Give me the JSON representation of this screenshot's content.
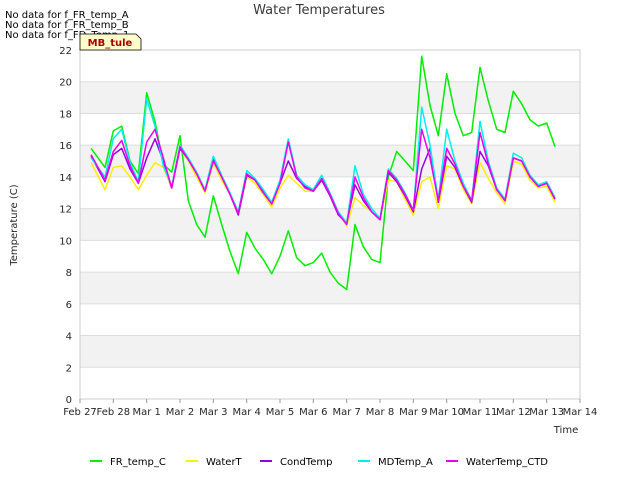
{
  "chart_data": {
    "type": "line",
    "title": "Water Temperatures",
    "xlabel": "Time",
    "ylabel": "Temperature (C)",
    "ylim": [
      0,
      22
    ],
    "xlim": [
      "Feb 27",
      "Mar 14"
    ],
    "yticks": [
      0,
      2,
      4,
      6,
      8,
      10,
      12,
      14,
      16,
      18,
      20,
      22
    ],
    "xticks": [
      "Feb 27",
      "Feb 28",
      "Mar 1",
      "Mar 2",
      "Mar 3",
      "Mar 4",
      "Mar 5",
      "Mar 6",
      "Mar 7",
      "Mar 8",
      "Mar 9",
      "Mar 10",
      "Mar 11",
      "Mar 12",
      "Mar 13",
      "Mar 14"
    ],
    "grid": true,
    "legend_position": "bottom",
    "no_data_messages": [
      "No data for f_FR_temp_A",
      "No data for f_FR_temp_B",
      "No data for f_FD_Temp_1"
    ],
    "annotation": "MB_tule",
    "series": [
      {
        "name": "FR_temp_C",
        "color": "#00ee00",
        "x": [
          "Feb 27 08:00",
          "Feb 27 18:00",
          "Feb 28 00:00",
          "Feb 28 06:00",
          "Feb 28 12:00",
          "Feb 28 18:00",
          "Mar 1 00:00",
          "Mar 1 06:00",
          "Mar 1 12:00",
          "Mar 1 18:00",
          "Mar 2 00:00",
          "Mar 2 06:00",
          "Mar 2 12:00",
          "Mar 2 18:00",
          "Mar 3 00:00",
          "Mar 3 06:00",
          "Mar 3 12:00",
          "Mar 3 18:00",
          "Mar 4 00:00",
          "Mar 4 06:00",
          "Mar 4 12:00",
          "Mar 4 18:00",
          "Mar 5 00:00",
          "Mar 5 06:00",
          "Mar 5 12:00",
          "Mar 5 18:00",
          "Mar 6 00:00",
          "Mar 6 06:00",
          "Mar 6 12:00",
          "Mar 6 18:00",
          "Mar 7 00:00",
          "Mar 7 06:00",
          "Mar 7 12:00",
          "Mar 7 18:00",
          "Mar 8 00:00",
          "Mar 8 06:00",
          "Mar 8 12:00",
          "Mar 8 18:00",
          "Mar 9 00:00",
          "Mar 9 06:00",
          "Mar 9 12:00",
          "Mar 9 18:00",
          "Mar 10 00:00",
          "Mar 10 06:00",
          "Mar 10 12:00",
          "Mar 10 18:00",
          "Mar 11 00:00",
          "Mar 11 06:00",
          "Mar 11 12:00",
          "Mar 11 18:00",
          "Mar 12 00:00",
          "Mar 12 06:00",
          "Mar 12 12:00",
          "Mar 12 18:00",
          "Mar 13 00:00",
          "Mar 13 06:00"
        ],
        "values": [
          15.8,
          14.6,
          16.9,
          17.2,
          15.0,
          14.2,
          19.3,
          17.5,
          14.8,
          14.3,
          16.6,
          12.5,
          11.0,
          10.2,
          12.8,
          11.0,
          9.3,
          7.9,
          10.5,
          9.5,
          8.8,
          7.9,
          9.0,
          10.6,
          8.9,
          8.4,
          8.6,
          9.2,
          8.0,
          7.3,
          6.9,
          11.0,
          9.6,
          8.8,
          8.6,
          14.0,
          15.6,
          15.0,
          14.4,
          21.6,
          18.5,
          16.6,
          20.5,
          18.0,
          16.6,
          16.8,
          20.9,
          18.8,
          17.0,
          16.8,
          19.4,
          18.6,
          17.6,
          17.2,
          17.4,
          15.9
        ]
      },
      {
        "name": "WaterT",
        "color": "#ffee00",
        "x": [
          "Feb 27 08:00",
          "Feb 27 18:00",
          "Feb 28 00:00",
          "Feb 28 06:00",
          "Feb 28 12:00",
          "Feb 28 18:00",
          "Mar 1 00:00",
          "Mar 1 06:00",
          "Mar 1 12:00",
          "Mar 1 18:00",
          "Mar 2 00:00",
          "Mar 2 06:00",
          "Mar 2 12:00",
          "Mar 2 18:00",
          "Mar 3 00:00",
          "Mar 3 06:00",
          "Mar 3 12:00",
          "Mar 3 18:00",
          "Mar 4 00:00",
          "Mar 4 06:00",
          "Mar 4 12:00",
          "Mar 4 18:00",
          "Mar 5 00:00",
          "Mar 5 06:00",
          "Mar 5 12:00",
          "Mar 5 18:00",
          "Mar 6 00:00",
          "Mar 6 06:00",
          "Mar 6 12:00",
          "Mar 6 18:00",
          "Mar 7 00:00",
          "Mar 7 06:00",
          "Mar 7 12:00",
          "Mar 7 18:00",
          "Mar 8 00:00",
          "Mar 8 06:00",
          "Mar 8 12:00",
          "Mar 8 18:00",
          "Mar 9 00:00",
          "Mar 9 06:00",
          "Mar 9 12:00",
          "Mar 9 18:00",
          "Mar 10 00:00",
          "Mar 10 06:00",
          "Mar 10 12:00",
          "Mar 10 18:00",
          "Mar 11 00:00",
          "Mar 11 06:00",
          "Mar 11 12:00",
          "Mar 11 18:00",
          "Mar 12 00:00",
          "Mar 12 06:00",
          "Mar 12 12:00",
          "Mar 12 18:00",
          "Mar 13 00:00",
          "Mar 13 06:00"
        ],
        "values": [
          14.9,
          13.2,
          14.6,
          14.7,
          14.0,
          13.2,
          14.1,
          14.9,
          14.6,
          13.3,
          15.8,
          15.0,
          14.0,
          13.0,
          14.9,
          13.8,
          12.9,
          11.6,
          14.0,
          13.6,
          12.9,
          12.1,
          13.3,
          14.1,
          13.6,
          13.1,
          13.1,
          13.8,
          12.9,
          11.8,
          10.9,
          12.7,
          12.2,
          11.8,
          11.3,
          13.8,
          13.7,
          12.6,
          11.6,
          13.7,
          14.0,
          12.0,
          14.7,
          14.5,
          13.2,
          12.3,
          14.9,
          13.9,
          13.0,
          12.3,
          15.0,
          14.8,
          13.8,
          13.3,
          13.4,
          12.4
        ]
      },
      {
        "name": "CondTemp",
        "color": "#9900dd",
        "x": [
          "Feb 27 08:00",
          "Feb 27 18:00",
          "Feb 28 00:00",
          "Feb 28 06:00",
          "Feb 28 12:00",
          "Feb 28 18:00",
          "Mar 1 00:00",
          "Mar 1 06:00",
          "Mar 1 12:00",
          "Mar 1 18:00",
          "Mar 2 00:00",
          "Mar 2 06:00",
          "Mar 2 12:00",
          "Mar 2 18:00",
          "Mar 3 00:00",
          "Mar 3 06:00",
          "Mar 3 12:00",
          "Mar 3 18:00",
          "Mar 4 00:00",
          "Mar 4 06:00",
          "Mar 4 12:00",
          "Mar 4 18:00",
          "Mar 5 00:00",
          "Mar 5 06:00",
          "Mar 5 12:00",
          "Mar 5 18:00",
          "Mar 6 00:00",
          "Mar 6 06:00",
          "Mar 6 12:00",
          "Mar 6 18:00",
          "Mar 7 00:00",
          "Mar 7 06:00",
          "Mar 7 12:00",
          "Mar 7 18:00",
          "Mar 8 00:00",
          "Mar 8 06:00",
          "Mar 8 12:00",
          "Mar 8 18:00",
          "Mar 9 00:00",
          "Mar 9 06:00",
          "Mar 9 12:00",
          "Mar 9 18:00",
          "Mar 10 00:00",
          "Mar 10 06:00",
          "Mar 10 12:00",
          "Mar 10 18:00",
          "Mar 11 00:00",
          "Mar 11 06:00",
          "Mar 11 12:00",
          "Mar 11 18:00",
          "Mar 12 00:00",
          "Mar 12 06:00",
          "Mar 12 12:00",
          "Mar 12 18:00",
          "Mar 13 00:00",
          "Mar 13 06:00"
        ],
        "values": [
          15.3,
          13.7,
          15.4,
          15.8,
          14.5,
          13.6,
          15.2,
          16.4,
          15.0,
          13.3,
          15.8,
          15.1,
          14.2,
          13.2,
          15.1,
          14.0,
          12.9,
          11.6,
          14.1,
          13.8,
          13.1,
          12.3,
          13.6,
          15.0,
          13.9,
          13.4,
          13.1,
          13.8,
          12.8,
          11.6,
          11.1,
          13.5,
          12.5,
          11.8,
          11.3,
          14.3,
          13.7,
          12.8,
          11.8,
          14.5,
          15.8,
          12.4,
          15.3,
          14.6,
          13.4,
          12.4,
          15.6,
          14.7,
          13.2,
          12.5,
          15.2,
          15.0,
          14.0,
          13.4,
          13.6,
          12.6
        ]
      },
      {
        "name": "MDTemp_A",
        "color": "#00eeee",
        "x": [
          "Feb 27 08:00",
          "Feb 27 18:00",
          "Feb 28 00:00",
          "Feb 28 06:00",
          "Feb 28 12:00",
          "Feb 28 18:00",
          "Mar 1 00:00",
          "Mar 1 06:00",
          "Mar 1 12:00",
          "Mar 1 18:00",
          "Mar 2 00:00",
          "Mar 2 06:00",
          "Mar 2 12:00",
          "Mar 2 18:00",
          "Mar 3 00:00",
          "Mar 3 06:00",
          "Mar 3 12:00",
          "Mar 3 18:00",
          "Mar 4 00:00",
          "Mar 4 06:00",
          "Mar 4 12:00",
          "Mar 4 18:00",
          "Mar 5 00:00",
          "Mar 5 06:00",
          "Mar 5 12:00",
          "Mar 5 18:00",
          "Mar 6 00:00",
          "Mar 6 06:00",
          "Mar 6 12:00",
          "Mar 6 18:00",
          "Mar 7 00:00",
          "Mar 7 06:00",
          "Mar 7 12:00",
          "Mar 7 18:00",
          "Mar 8 00:00",
          "Mar 8 06:00",
          "Mar 8 12:00",
          "Mar 8 18:00",
          "Mar 9 00:00",
          "Mar 9 06:00",
          "Mar 9 12:00",
          "Mar 9 18:00",
          "Mar 10 00:00",
          "Mar 10 06:00",
          "Mar 10 12:00",
          "Mar 10 18:00",
          "Mar 11 00:00",
          "Mar 11 06:00",
          "Mar 11 12:00",
          "Mar 11 18:00",
          "Mar 12 00:00",
          "Mar 12 06:00",
          "Mar 12 12:00",
          "Mar 12 18:00",
          "Mar 13 00:00",
          "Mar 13 06:00"
        ],
        "values": [
          15.2,
          14.0,
          16.4,
          17.0,
          14.9,
          13.7,
          18.9,
          17.2,
          14.7,
          13.4,
          16.0,
          15.2,
          14.3,
          13.2,
          15.3,
          14.1,
          13.0,
          11.8,
          14.4,
          13.9,
          13.2,
          12.4,
          13.8,
          16.4,
          14.1,
          13.5,
          13.2,
          14.1,
          13.0,
          11.8,
          11.1,
          14.7,
          12.9,
          12.0,
          11.4,
          14.5,
          13.9,
          13.0,
          11.9,
          18.4,
          16.0,
          12.6,
          17.0,
          15.0,
          13.6,
          12.5,
          17.5,
          15.0,
          13.3,
          12.6,
          15.5,
          15.2,
          14.1,
          13.5,
          13.7,
          12.7
        ]
      },
      {
        "name": "WaterTemp_CTD",
        "color": "#ee00ee",
        "x": [
          "Feb 27 08:00",
          "Feb 27 18:00",
          "Feb 28 00:00",
          "Feb 28 06:00",
          "Feb 28 12:00",
          "Feb 28 18:00",
          "Mar 1 00:00",
          "Mar 1 06:00",
          "Mar 1 12:00",
          "Mar 1 18:00",
          "Mar 2 00:00",
          "Mar 2 06:00",
          "Mar 2 12:00",
          "Mar 2 18:00",
          "Mar 3 00:00",
          "Mar 3 06:00",
          "Mar 3 12:00",
          "Mar 3 18:00",
          "Mar 4 00:00",
          "Mar 4 06:00",
          "Mar 4 12:00",
          "Mar 4 18:00",
          "Mar 5 00:00",
          "Mar 5 06:00",
          "Mar 5 12:00",
          "Mar 5 18:00",
          "Mar 6 00:00",
          "Mar 6 06:00",
          "Mar 6 12:00",
          "Mar 6 18:00",
          "Mar 7 00:00",
          "Mar 7 06:00",
          "Mar 7 12:00",
          "Mar 7 18:00",
          "Mar 8 00:00",
          "Mar 8 06:00",
          "Mar 8 12:00",
          "Mar 8 18:00",
          "Mar 9 00:00",
          "Mar 9 06:00",
          "Mar 9 12:00",
          "Mar 9 18:00",
          "Mar 10 00:00",
          "Mar 10 06:00",
          "Mar 10 12:00",
          "Mar 10 18:00",
          "Mar 11 00:00",
          "Mar 11 06:00",
          "Mar 11 12:00",
          "Mar 11 18:00",
          "Mar 12 00:00",
          "Mar 12 06:00",
          "Mar 12 12:00",
          "Mar 12 18:00",
          "Mar 13 00:00",
          "Mar 13 06:00"
        ],
        "values": [
          15.4,
          13.8,
          15.6,
          16.3,
          14.7,
          13.6,
          16.2,
          17.0,
          15.2,
          13.3,
          15.9,
          15.1,
          14.2,
          13.1,
          15.0,
          14.0,
          12.9,
          11.7,
          14.2,
          13.8,
          13.0,
          12.3,
          13.6,
          16.2,
          14.0,
          13.3,
          13.1,
          13.9,
          12.9,
          11.7,
          11.0,
          14.0,
          12.7,
          11.8,
          11.3,
          14.4,
          13.8,
          12.9,
          11.9,
          17.0,
          15.2,
          12.5,
          15.8,
          14.8,
          13.4,
          12.5,
          16.8,
          14.8,
          13.2,
          12.5,
          15.2,
          15.0,
          14.0,
          13.4,
          13.6,
          12.6
        ]
      }
    ]
  }
}
